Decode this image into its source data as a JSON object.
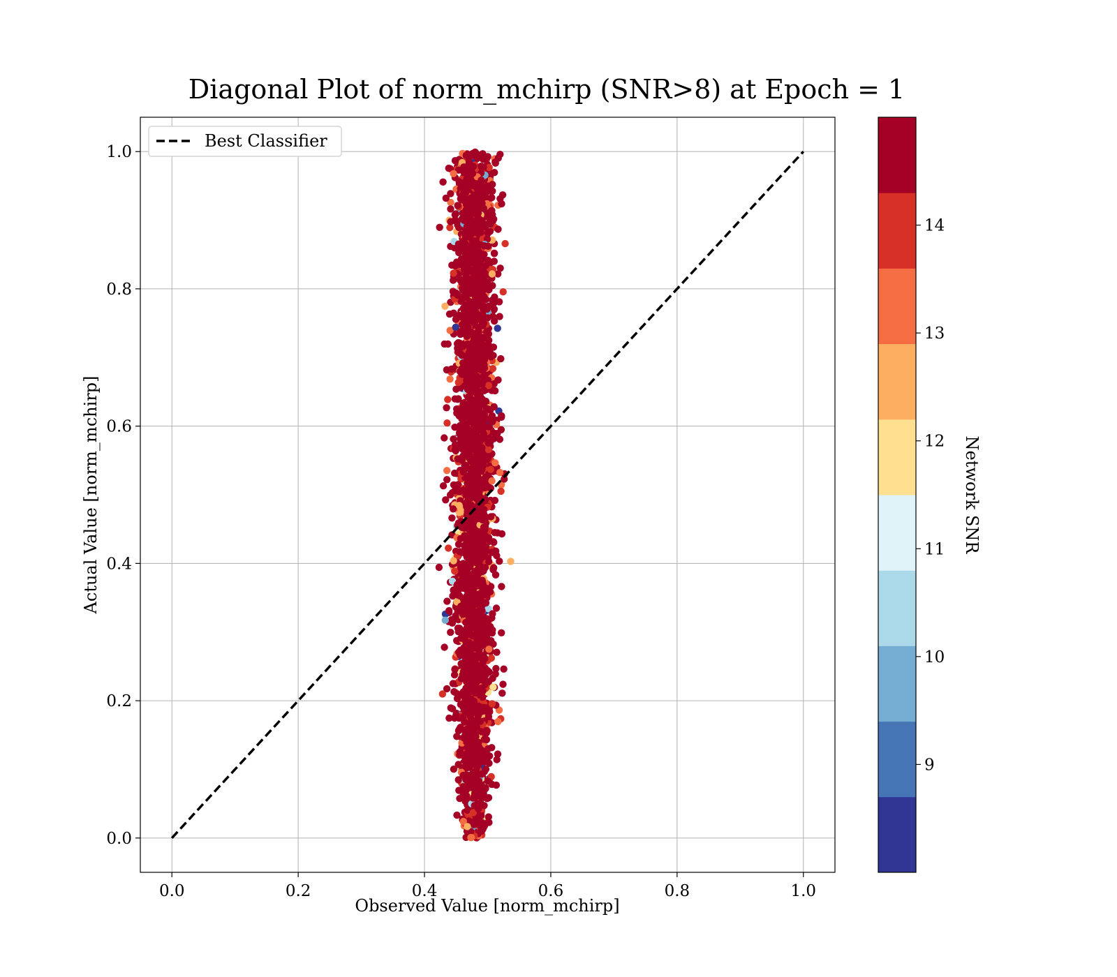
{
  "chart_data": {
    "type": "scatter",
    "title": "Diagonal Plot of norm_mchirp (SNR>8) at Epoch = 1",
    "xlabel": "Observed Value [norm_mchirp]",
    "ylabel": "Actual Value [norm_mchirp]",
    "xlim": [
      -0.05,
      1.05
    ],
    "ylim": [
      -0.05,
      1.05
    ],
    "x_ticks": [
      "0.0",
      "0.2",
      "0.4",
      "0.6",
      "0.8",
      "1.0"
    ],
    "y_ticks": [
      "0.0",
      "0.2",
      "0.4",
      "0.6",
      "0.8",
      "1.0"
    ],
    "grid": true,
    "legend": {
      "position": "upper-left",
      "entries": [
        "Best Classifier"
      ]
    },
    "reference_line": {
      "name": "Best Classifier",
      "style": "dashed",
      "color": "#000000",
      "x": [
        0.0,
        1.0
      ],
      "y": [
        0.0,
        1.0
      ]
    },
    "scatter_cloud": {
      "x_center": 0.478,
      "x_spread_at_mid": 0.035,
      "y_range": [
        0.0,
        1.0
      ],
      "dominant_snr": "14+",
      "description_points": [
        {
          "x": 0.478,
          "y": 0.0
        },
        {
          "x": 0.478,
          "y": 0.2
        },
        {
          "x": 0.478,
          "y": 0.4
        },
        {
          "x": 0.478,
          "y": 0.6
        },
        {
          "x": 0.478,
          "y": 0.8
        },
        {
          "x": 0.478,
          "y": 1.0
        }
      ]
    },
    "colorbar": {
      "label": "Network SNR",
      "range": [
        8,
        15
      ],
      "ticks": [
        "9",
        "10",
        "11",
        "12",
        "13",
        "14"
      ],
      "tick_values": [
        9,
        10,
        11,
        12,
        13,
        14
      ],
      "colors": [
        "#313695",
        "#4575b4",
        "#74add1",
        "#abd9e9",
        "#e0f3f8",
        "#fee090",
        "#fdae61",
        "#f46d43",
        "#d73027",
        "#a50026"
      ]
    }
  }
}
